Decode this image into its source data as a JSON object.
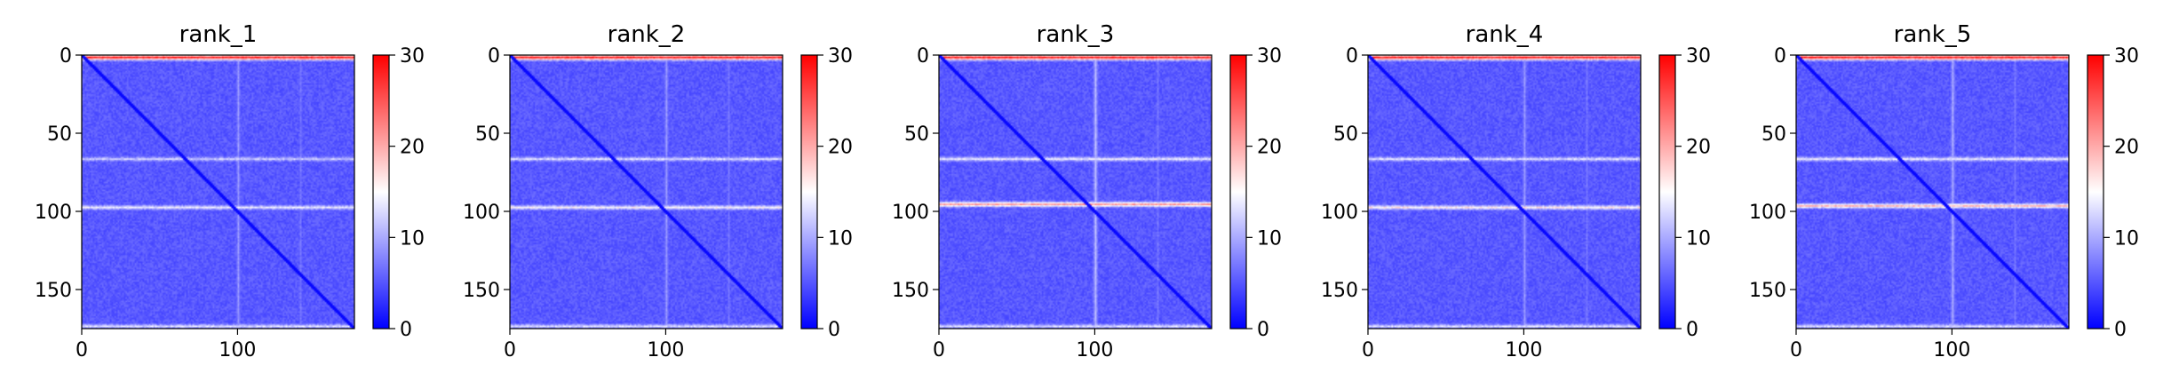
{
  "chart_data": [
    {
      "type": "heatmap",
      "title": "rank_1",
      "xlabel": "",
      "ylabel": "",
      "matrix_size": 175,
      "x_ticks": [
        0,
        100
      ],
      "y_ticks": [
        0,
        50,
        100,
        150
      ],
      "xlim": [
        0,
        175
      ],
      "ylim": [
        175,
        0
      ],
      "colorbar": {
        "ticks": [
          0,
          10,
          20,
          30
        ],
        "range": [
          0,
          30
        ],
        "colormap": "bwr"
      },
      "baseline_value": 4,
      "diagonal_value": 0.5,
      "bright_rows": [
        {
          "y": 1,
          "value": 28
        },
        {
          "y": 66,
          "value": 12
        },
        {
          "y": 97,
          "value": 14
        },
        {
          "y": 173,
          "value": 13
        }
      ],
      "bright_cols": [
        {
          "x": 100,
          "value": 9
        },
        {
          "x": 140,
          "value": 7
        }
      ]
    },
    {
      "type": "heatmap",
      "title": "rank_2",
      "xlabel": "",
      "ylabel": "",
      "matrix_size": 175,
      "x_ticks": [
        0,
        100
      ],
      "y_ticks": [
        0,
        50,
        100,
        150
      ],
      "xlim": [
        0,
        175
      ],
      "ylim": [
        175,
        0
      ],
      "colorbar": {
        "ticks": [
          0,
          10,
          20,
          30
        ],
        "range": [
          0,
          30
        ],
        "colormap": "bwr"
      },
      "baseline_value": 4,
      "diagonal_value": 0.5,
      "bright_rows": [
        {
          "y": 1,
          "value": 28
        },
        {
          "y": 66,
          "value": 13
        },
        {
          "y": 97,
          "value": 15
        },
        {
          "y": 173,
          "value": 13
        }
      ],
      "bright_cols": [
        {
          "x": 100,
          "value": 9
        },
        {
          "x": 140,
          "value": 7
        }
      ]
    },
    {
      "type": "heatmap",
      "title": "rank_3",
      "xlabel": "",
      "ylabel": "",
      "matrix_size": 175,
      "x_ticks": [
        0,
        100
      ],
      "y_ticks": [
        0,
        50,
        100,
        150
      ],
      "xlim": [
        0,
        175
      ],
      "ylim": [
        175,
        0
      ],
      "colorbar": {
        "ticks": [
          0,
          10,
          20,
          30
        ],
        "range": [
          0,
          30
        ],
        "colormap": "bwr"
      },
      "baseline_value": 4,
      "diagonal_value": 0.5,
      "bright_rows": [
        {
          "y": 1,
          "value": 28
        },
        {
          "y": 66,
          "value": 14
        },
        {
          "y": 95,
          "value": 21
        },
        {
          "y": 173,
          "value": 13
        }
      ],
      "bright_cols": [
        {
          "x": 100,
          "value": 11
        },
        {
          "x": 140,
          "value": 7
        }
      ]
    },
    {
      "type": "heatmap",
      "title": "rank_4",
      "xlabel": "",
      "ylabel": "",
      "matrix_size": 175,
      "x_ticks": [
        0,
        100
      ],
      "y_ticks": [
        0,
        50,
        100,
        150
      ],
      "xlim": [
        0,
        175
      ],
      "ylim": [
        175,
        0
      ],
      "colorbar": {
        "ticks": [
          0,
          10,
          20,
          30
        ],
        "range": [
          0,
          30
        ],
        "colormap": "bwr"
      },
      "baseline_value": 4,
      "diagonal_value": 0.5,
      "bright_rows": [
        {
          "y": 1,
          "value": 28
        },
        {
          "y": 66,
          "value": 13
        },
        {
          "y": 97,
          "value": 16
        },
        {
          "y": 173,
          "value": 13
        }
      ],
      "bright_cols": [
        {
          "x": 100,
          "value": 9
        },
        {
          "x": 140,
          "value": 7
        }
      ]
    },
    {
      "type": "heatmap",
      "title": "rank_5",
      "xlabel": "",
      "ylabel": "",
      "matrix_size": 175,
      "x_ticks": [
        0,
        100
      ],
      "y_ticks": [
        0,
        50,
        100,
        150
      ],
      "xlim": [
        0,
        175
      ],
      "ylim": [
        175,
        0
      ],
      "colorbar": {
        "ticks": [
          0,
          10,
          20,
          30
        ],
        "range": [
          0,
          30
        ],
        "colormap": "bwr"
      },
      "baseline_value": 4,
      "diagonal_value": 0.5,
      "bright_rows": [
        {
          "y": 1,
          "value": 28
        },
        {
          "y": 66,
          "value": 14
        },
        {
          "y": 96,
          "value": 19
        },
        {
          "y": 173,
          "value": 13
        }
      ],
      "bright_cols": [
        {
          "x": 100,
          "value": 10
        },
        {
          "x": 140,
          "value": 7
        }
      ]
    }
  ]
}
